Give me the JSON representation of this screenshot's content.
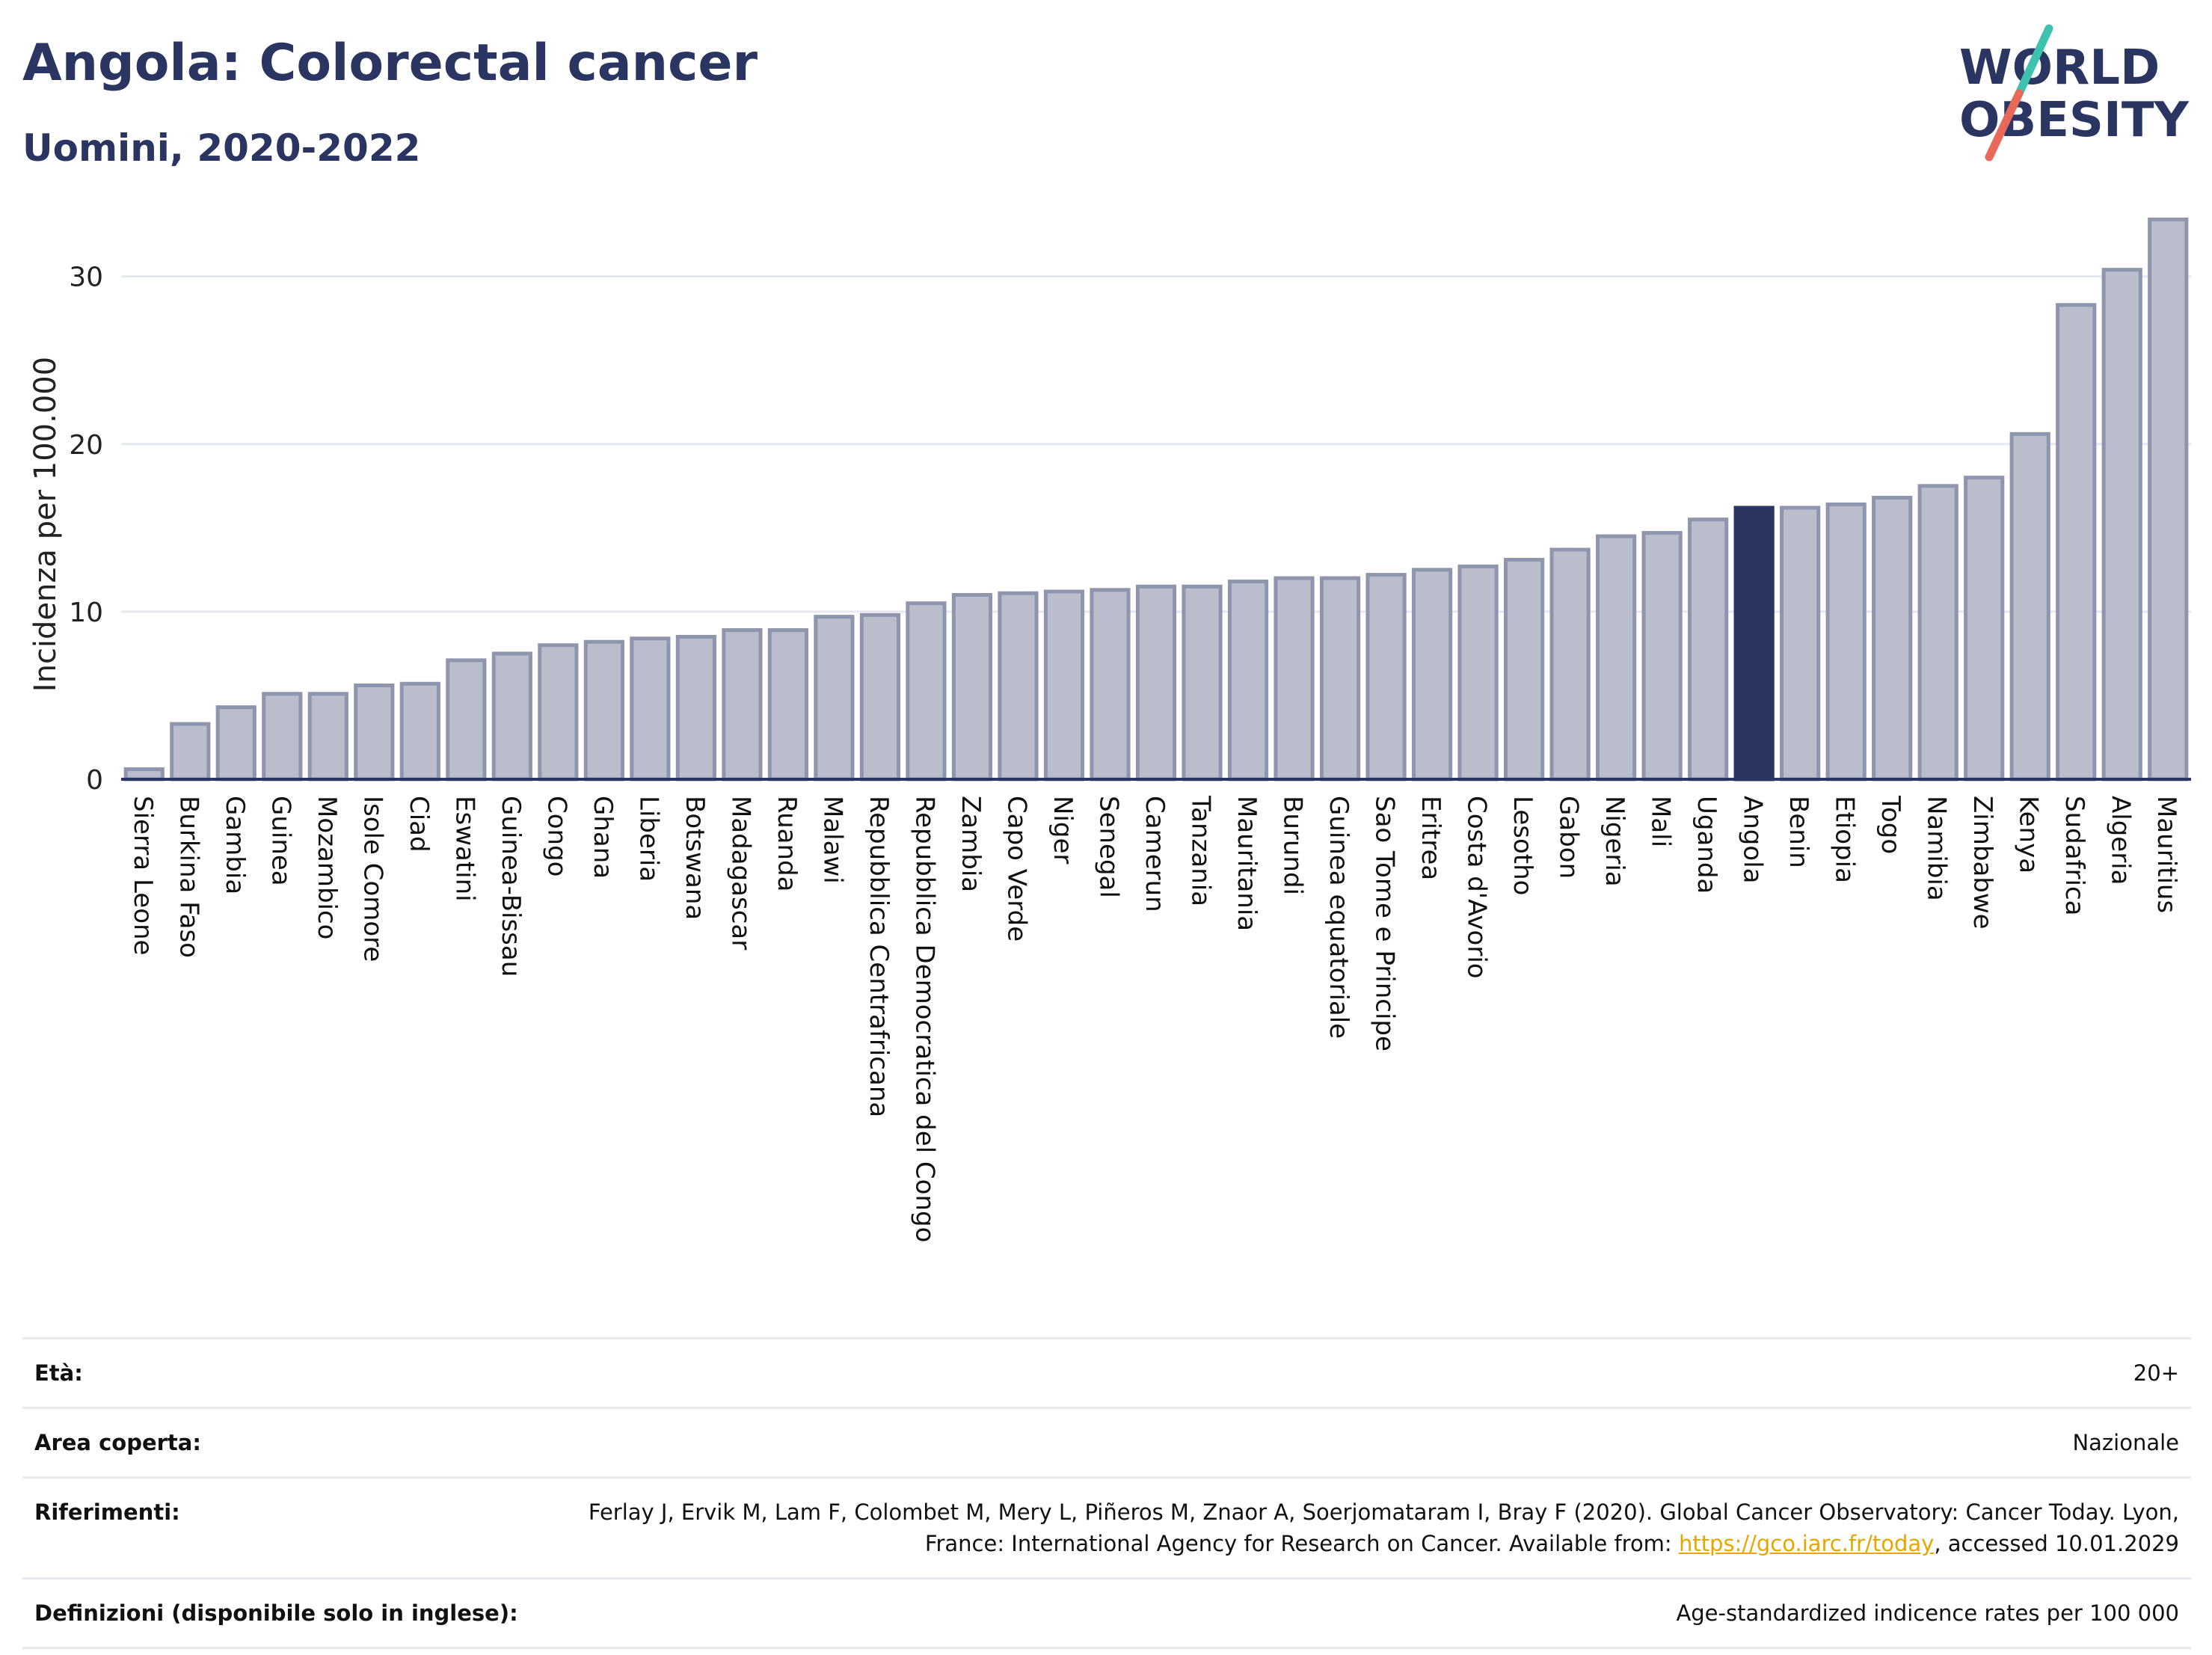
{
  "header": {
    "title": "Angola: Colorectal cancer",
    "subtitle": "Uomini, 2020-2022"
  },
  "logo": {
    "line1": "WORLD",
    "line2": "OBESITY",
    "colors": {
      "text": "#2a3561",
      "slash_top": "#3fc1b0",
      "slash_bottom": "#e8685a"
    }
  },
  "colors": {
    "bar_fill": "#b9bdcc",
    "bar_stroke": "#8f95ad",
    "highlight": "#2a3561",
    "grid": "#e6e8ef",
    "axis": "#2a3561"
  },
  "chart_data": {
    "type": "bar",
    "ylabel": "Incidenza per 100.000",
    "ylim": [
      0,
      34
    ],
    "yticks": [
      0,
      10,
      20,
      30
    ],
    "highlight": "Angola",
    "categories": [
      "Sierra Leone",
      "Burkina Faso",
      "Gambia",
      "Guinea",
      "Mozambico",
      "Isole Comore",
      "Ciad",
      "Eswatini",
      "Guinea-Bissau",
      "Congo",
      "Ghana",
      "Liberia",
      "Botswana",
      "Madagascar",
      "Ruanda",
      "Malawi",
      "Repubblica Centrafricana",
      "Repubblica Democratica del Congo",
      "Zambia",
      "Capo Verde",
      "Niger",
      "Senegal",
      "Camerun",
      "Tanzania",
      "Mauritania",
      "Burundi",
      "Guinea equatoriale",
      "Sao Tome e Principe",
      "Eritrea",
      "Costa d'Avorio",
      "Lesotho",
      "Gabon",
      "Nigeria",
      "Mali",
      "Uganda",
      "Angola",
      "Benin",
      "Etiopia",
      "Togo",
      "Namibia",
      "Zimbabwe",
      "Kenya",
      "Sudafrica",
      "Algeria",
      "Mauritius"
    ],
    "values": [
      0.6,
      3.3,
      4.3,
      5.1,
      5.1,
      5.6,
      5.7,
      7.1,
      7.5,
      8.0,
      8.2,
      8.4,
      8.5,
      8.9,
      8.9,
      9.7,
      9.8,
      10.5,
      11.0,
      11.1,
      11.2,
      11.3,
      11.5,
      11.5,
      11.8,
      12.0,
      12.0,
      12.2,
      12.5,
      12.7,
      13.1,
      13.7,
      14.5,
      14.7,
      15.5,
      16.2,
      16.2,
      16.4,
      16.8,
      17.5,
      18.0,
      20.6,
      28.3,
      30.4,
      33.4
    ]
  },
  "info": {
    "age_label": "Età:",
    "age_value": "20+",
    "area_label": "Area coperta:",
    "area_value": "Nazionale",
    "ref_label": "Riferimenti:",
    "ref_text_1": "Ferlay J, Ervik M, Lam F, Colombet M, Mery L, Piñeros M, Znaor A, Soerjomataram I, Bray F (2020). Global Cancer Observatory: Cancer Today. Lyon, France: International Agency for Research on Cancer. Available from: ",
    "ref_link": "https://gco.iarc.fr/today",
    "ref_text_2": ", accessed 10.01.2029",
    "def_label": "Definizioni (disponibile solo in inglese):",
    "def_value": "Age-standardized indicence rates per 100 000"
  }
}
